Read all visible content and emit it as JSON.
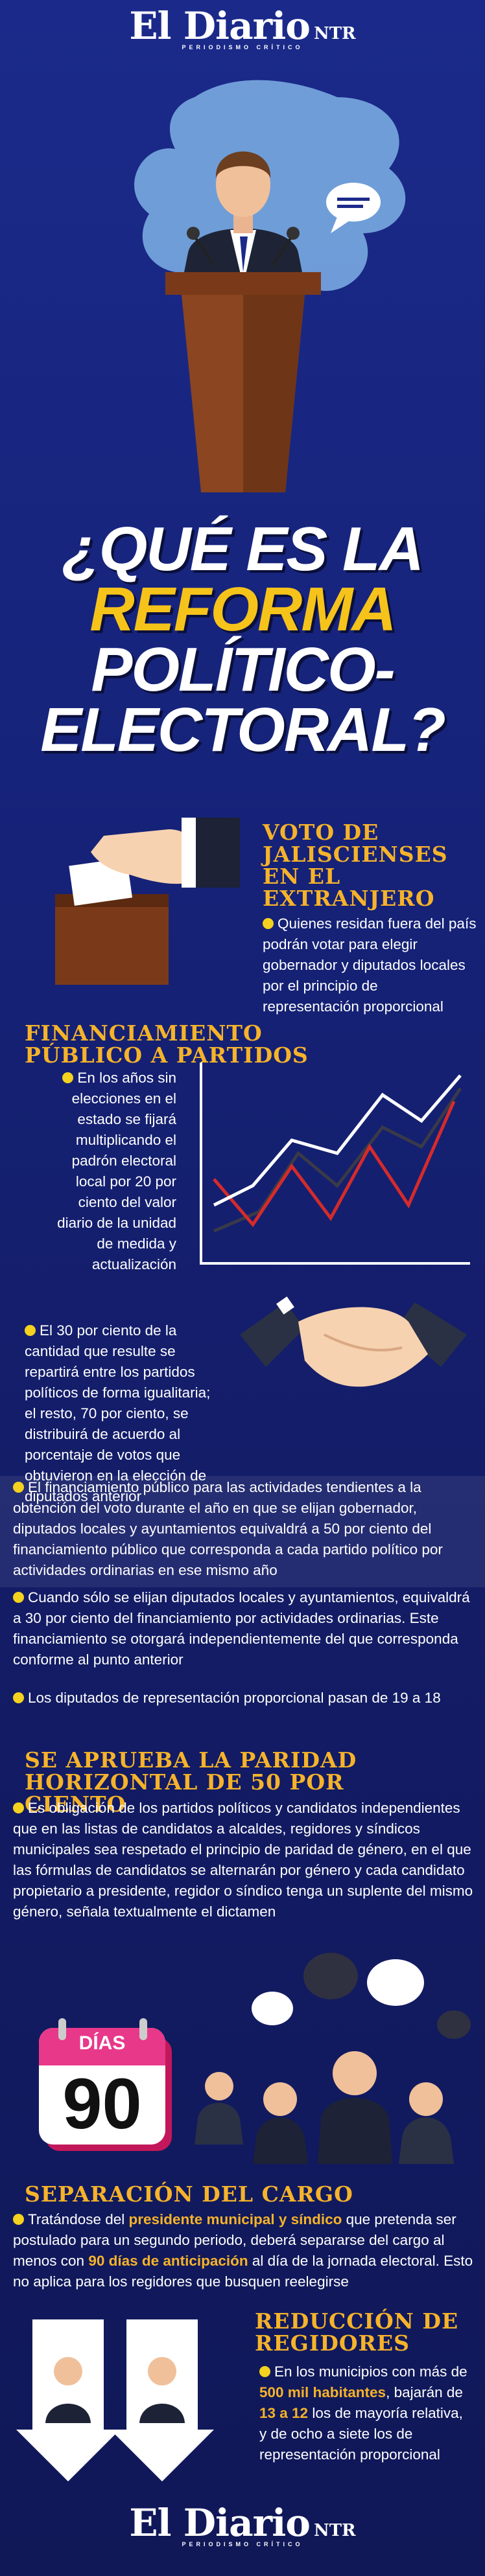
{
  "header": {
    "logo": "El Diario",
    "logo_suffix": "NTR",
    "tagline": "PERIODISMO CRÍTICO"
  },
  "title": {
    "lines": [
      "¿QUÉ ES LA",
      "REFORMA",
      "POLÍTICO-",
      "ELECTORAL?"
    ]
  },
  "voto": {
    "heading": "VOTO DE JALISCIENSES EN EL EXTRANJERO",
    "body": [
      {
        "text": "Quienes residan fuera del país podrán votar para elegir gobernador y diputados locales por el principio de representación proporcional",
        "highlight": false
      }
    ]
  },
  "financiamiento": {
    "heading": "FINANCIAMIENTO PÚBLICO A PARTIDOS",
    "bullets": [
      "En los años sin elecciones en el estado se fijará multiplicando el padrón electoral local por 20 por ciento del valor diario de la unidad de medida y actualización",
      "El 30 por ciento de la cantidad que resulte se repartirá entre los partidos políticos de forma igualitaria; el resto, 70 por ciento, se distribuirá de acuerdo al porcentaje de votos que obtuvieron en la elección de diputados anterior",
      "El financiamiento público para las actividades tendientes a la obtención del voto durante el año en que se elijan gobernador, diputados locales y ayuntamientos equivaldrá a 50 por ciento del financiamiento público que corresponda a cada partido político por actividades ordinarias en ese mismo año",
      "Cuando sólo se elijan diputados locales y ayuntamientos, equivaldrá a 30 por ciento del financiamiento por actividades ordinarias. Este financiamiento se otorgará independientemente del que corresponda conforme al punto anterior",
      "Los diputados de representación proporcional pasan de 19 a 18"
    ]
  },
  "paridad": {
    "heading": "SE APRUEBA LA PARIDAD HORIZONTAL DE 50 POR CIENTO",
    "body": [
      {
        "text": "Es obligación de los partidos políticos y candidatos independientes que en las listas de candidatos a alcaldes, regidores y síndicos municipales sea respetado el principio de paridad de género, en el que las fórmulas de candidatos se alternarán por género y cada candidato propietario a presidente, regidor o síndico tenga un suplente del mismo género, señala textualmente el dictamen",
        "highlight": false
      }
    ]
  },
  "calendar": {
    "label": "DÍAS",
    "number": "90"
  },
  "separacion": {
    "heading": "SEPARACIÓN DEL CARGO",
    "body": [
      {
        "text": "Tratándose del ",
        "highlight": false
      },
      {
        "text": "presidente municipal y síndico",
        "highlight": true
      },
      {
        "text": " que pretenda ser postulado para un segundo periodo, deberá separarse del cargo al menos con ",
        "highlight": false
      },
      {
        "text": "90 días de anticipación",
        "highlight": true
      },
      {
        "text": " al día de la jornada electoral. Esto no aplica para los regidores que busquen reelegirse",
        "highlight": false
      }
    ]
  },
  "reduccion": {
    "heading": "REDUCCIÓN DE REGIDORES",
    "body": [
      {
        "text": "En los municipios con más de ",
        "highlight": false
      },
      {
        "text": "500 mil habitantes",
        "highlight": true
      },
      {
        "text": ", bajarán de ",
        "highlight": false
      },
      {
        "text": "13 a 12",
        "highlight": true
      },
      {
        "text": " los de mayoría relativa, y de ocho a siete los de representación proporcional",
        "highlight": false
      }
    ]
  },
  "footer": {
    "logo": "El Diario",
    "logo_suffix": "NTR",
    "tagline": "PERIODISMO CRÍTICO"
  }
}
